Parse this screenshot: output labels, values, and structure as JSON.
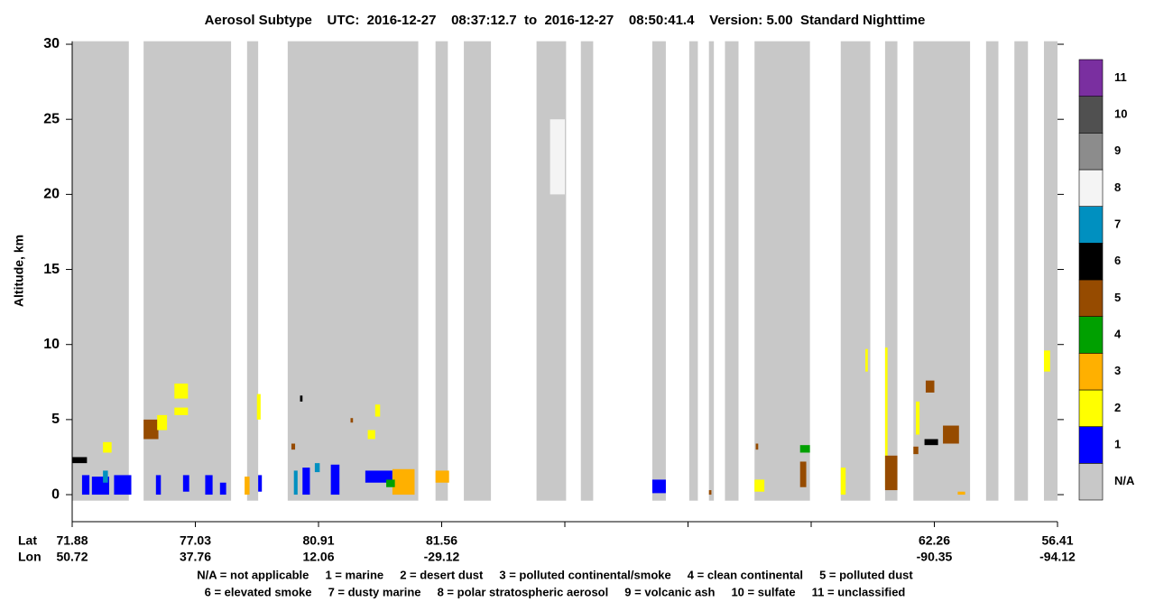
{
  "chart_data": {
    "type": "curtain",
    "title": "Aerosol Subtype    UTC:  2016-12-27    08:37:12.7  to  2016-12-27    08:50:41.4    Version: 5.00  Standard Nighttime",
    "ylabel": "Altitude, km",
    "ylim": [
      -1.8,
      30.2
    ],
    "yticks": [
      0,
      5,
      10,
      15,
      20,
      25,
      30
    ],
    "xlim": [
      0,
      8
    ],
    "xticks": [
      0,
      1,
      2,
      3,
      4,
      5,
      6,
      7,
      8
    ],
    "lat_label": "Lat",
    "lon_label": "Lon",
    "lat": [
      "71.88",
      "77.03",
      "80.91",
      "81.56",
      null,
      null,
      null,
      "62.26",
      "56.41"
    ],
    "lon": [
      "50.72",
      "37.76",
      "12.06",
      "-29.12",
      null,
      null,
      null,
      "-90.35",
      "-94.12"
    ],
    "classes": [
      "N/A",
      "1",
      "2",
      "3",
      "4",
      "5",
      "6",
      "7",
      "8",
      "9",
      "10",
      "11"
    ],
    "class_colors": [
      "#c8c8c8",
      "#0000ff",
      "#ffff00",
      "#ffb000",
      "#00a000",
      "#964b00",
      "#000000",
      "#0090c0",
      "#f4f4f4",
      "#8c8c8c",
      "#505050",
      "#7a2fa0"
    ],
    "na_range": [
      -0.4,
      30.2
    ],
    "na_columns": [
      [
        0,
        0.46
      ],
      [
        0.58,
        1.29
      ],
      [
        1.42,
        1.51
      ],
      [
        1.75,
        2.81
      ],
      [
        2.95,
        3.05
      ],
      [
        3.18,
        3.4
      ],
      [
        3.77,
        4.01
      ],
      [
        4.13,
        4.23
      ],
      [
        4.71,
        4.82
      ],
      [
        5.01,
        5.08
      ],
      [
        5.17,
        5.21
      ],
      [
        5.3,
        5.41
      ],
      [
        5.54,
        5.99
      ],
      [
        6.24,
        6.48
      ],
      [
        6.6,
        6.7
      ],
      [
        6.83,
        7.29
      ],
      [
        7.42,
        7.52
      ],
      [
        7.65,
        7.76
      ],
      [
        7.89,
        8
      ]
    ],
    "features": [
      {
        "x": [
          3.88,
          4.0
        ],
        "y": [
          20,
          25
        ],
        "class": 8
      },
      {
        "x": [
          0.08,
          0.14
        ],
        "y": [
          0,
          1.3
        ],
        "class": 1
      },
      {
        "x": [
          0.16,
          0.3
        ],
        "y": [
          0,
          1.2
        ],
        "class": 1
      },
      {
        "x": [
          0.34,
          0.48
        ],
        "y": [
          0,
          1.3
        ],
        "class": 1
      },
      {
        "x": [
          0.25,
          0.29
        ],
        "y": [
          0.8,
          1.6
        ],
        "class": 7
      },
      {
        "x": [
          0,
          0.12
        ],
        "y": [
          2.1,
          2.5
        ],
        "class": 6
      },
      {
        "x": [
          0.25,
          0.32
        ],
        "y": [
          2.8,
          3.5
        ],
        "class": 2
      },
      {
        "x": [
          0.58,
          0.7
        ],
        "y": [
          3.7,
          5.0
        ],
        "class": 5
      },
      {
        "x": [
          0.69,
          0.77
        ],
        "y": [
          4.3,
          5.3
        ],
        "class": 2
      },
      {
        "x": [
          0.83,
          0.94
        ],
        "y": [
          6.4,
          7.4
        ],
        "class": 2
      },
      {
        "x": [
          0.83,
          0.94
        ],
        "y": [
          5.3,
          5.8
        ],
        "class": 2
      },
      {
        "x": [
          0.68,
          0.72
        ],
        "y": [
          0,
          1.3
        ],
        "class": 1
      },
      {
        "x": [
          0.9,
          0.95
        ],
        "y": [
          0.2,
          1.3
        ],
        "class": 1
      },
      {
        "x": [
          1.08,
          1.14
        ],
        "y": [
          0,
          1.3
        ],
        "class": 1
      },
      {
        "x": [
          1.2,
          1.25
        ],
        "y": [
          0,
          0.8
        ],
        "class": 1
      },
      {
        "x": [
          1.4,
          1.44
        ],
        "y": [
          0,
          1.2
        ],
        "class": 3
      },
      {
        "x": [
          1.51,
          1.54
        ],
        "y": [
          0.2,
          1.3
        ],
        "class": 1
      },
      {
        "x": [
          1.5,
          1.53
        ],
        "y": [
          5.0,
          6.7
        ],
        "class": 2
      },
      {
        "x": [
          1.87,
          1.93
        ],
        "y": [
          0,
          1.8
        ],
        "class": 1
      },
      {
        "x": [
          2.1,
          2.17
        ],
        "y": [
          0,
          2.0
        ],
        "class": 1
      },
      {
        "x": [
          1.8,
          1.83
        ],
        "y": [
          0,
          1.6
        ],
        "class": 7
      },
      {
        "x": [
          1.97,
          2.01
        ],
        "y": [
          1.5,
          2.1
        ],
        "class": 7
      },
      {
        "x": [
          1.78,
          1.81
        ],
        "y": [
          3.0,
          3.4
        ],
        "class": 5
      },
      {
        "x": [
          2.26,
          2.28
        ],
        "y": [
          4.8,
          5.1
        ],
        "class": 5
      },
      {
        "x": [
          1.85,
          1.87
        ],
        "y": [
          6.2,
          6.6
        ],
        "class": 6
      },
      {
        "x": [
          2.38,
          2.6
        ],
        "y": [
          0.8,
          1.6
        ],
        "class": 1
      },
      {
        "x": [
          2.6,
          2.78
        ],
        "y": [
          0,
          1.7
        ],
        "class": 3
      },
      {
        "x": [
          2.55,
          2.62
        ],
        "y": [
          0.5,
          1.0
        ],
        "class": 4
      },
      {
        "x": [
          2.4,
          2.46
        ],
        "y": [
          3.7,
          4.3
        ],
        "class": 2
      },
      {
        "x": [
          2.46,
          2.5
        ],
        "y": [
          5.2,
          6.0
        ],
        "class": 2
      },
      {
        "x": [
          2.95,
          3.06
        ],
        "y": [
          0.8,
          1.6
        ],
        "class": 3
      },
      {
        "x": [
          4.71,
          4.82
        ],
        "y": [
          0.1,
          1.0
        ],
        "class": 1
      },
      {
        "x": [
          5.17,
          5.19
        ],
        "y": [
          0,
          0.3
        ],
        "class": 5
      },
      {
        "x": [
          5.54,
          5.62
        ],
        "y": [
          0.2,
          1.0
        ],
        "class": 2
      },
      {
        "x": [
          5.91,
          5.99
        ],
        "y": [
          2.8,
          3.3
        ],
        "class": 4
      },
      {
        "x": [
          5.91,
          5.96
        ],
        "y": [
          0.5,
          2.2
        ],
        "class": 5
      },
      {
        "x": [
          5.55,
          5.57
        ],
        "y": [
          3.0,
          3.4
        ],
        "class": 5
      },
      {
        "x": [
          6.24,
          6.28
        ],
        "y": [
          0,
          1.8
        ],
        "class": 2
      },
      {
        "x": [
          6.44,
          6.46
        ],
        "y": [
          8.2,
          9.7
        ],
        "class": 2
      },
      {
        "x": [
          6.6,
          6.62
        ],
        "y": [
          0.5,
          9.8
        ],
        "class": 2
      },
      {
        "x": [
          6.6,
          6.7
        ],
        "y": [
          0.3,
          2.6
        ],
        "class": 5
      },
      {
        "x": [
          6.83,
          6.87
        ],
        "y": [
          2.7,
          3.2
        ],
        "class": 5
      },
      {
        "x": [
          6.92,
          7.03
        ],
        "y": [
          3.3,
          3.7
        ],
        "class": 6
      },
      {
        "x": [
          7.07,
          7.2
        ],
        "y": [
          3.4,
          4.6
        ],
        "class": 5
      },
      {
        "x": [
          6.93,
          7.0
        ],
        "y": [
          6.8,
          7.6
        ],
        "class": 5
      },
      {
        "x": [
          6.85,
          6.88
        ],
        "y": [
          4.0,
          6.2
        ],
        "class": 2
      },
      {
        "x": [
          7.19,
          7.25
        ],
        "y": [
          0,
          0.2
        ],
        "class": 3
      },
      {
        "x": [
          7.89,
          7.94
        ],
        "y": [
          8.2,
          9.6
        ],
        "class": 2
      }
    ],
    "notes": [
      "N/A = not applicable     1 = marine     2 = desert dust     3 = polluted continental/smoke     4 = clean continental     5 = polluted dust",
      "6 = elevated smoke     7 = dusty marine     8 = polar stratospheric aerosol     9 = volcanic ash     10 = sulfate     11 = unclassified"
    ]
  }
}
